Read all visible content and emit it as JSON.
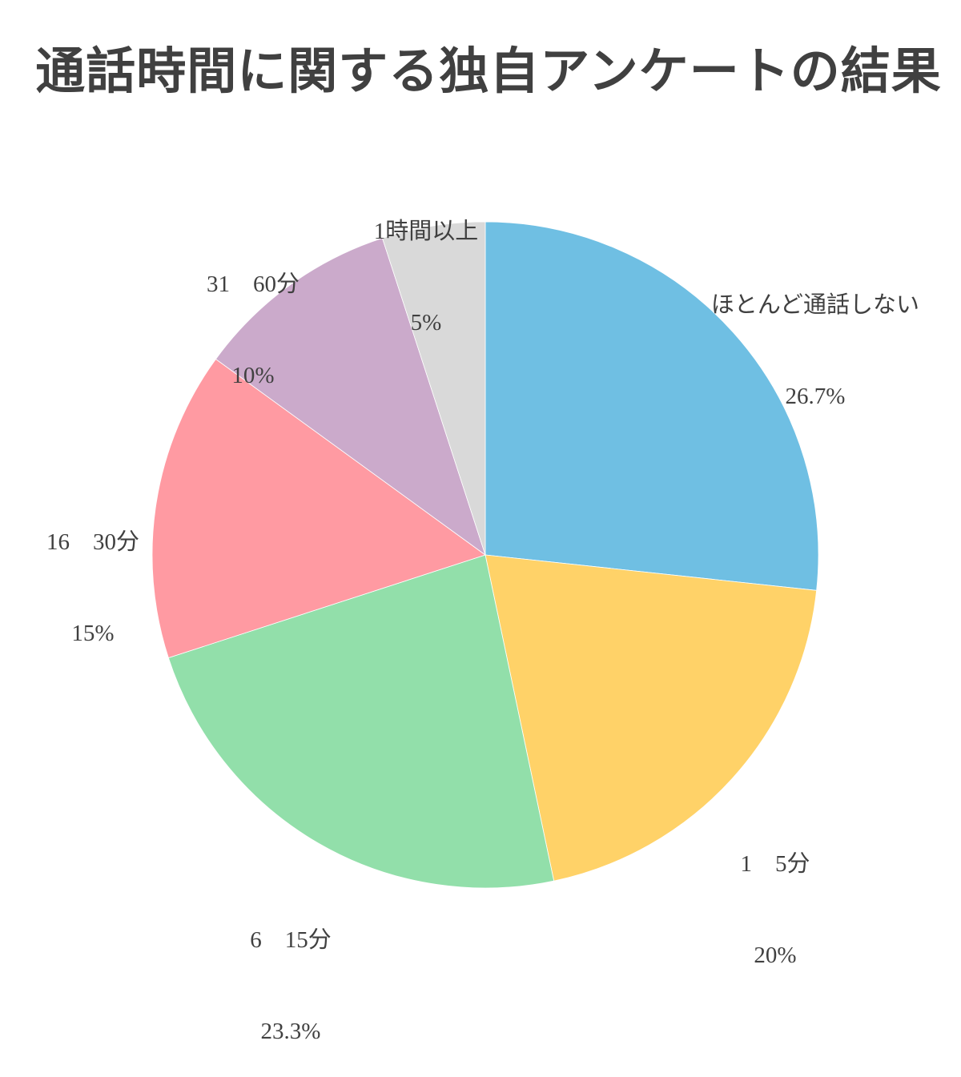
{
  "title": "通話時間に関する独自アンケートの結果",
  "chart_data": {
    "type": "pie",
    "title": "通話時間に関する独自アンケートの結果",
    "categories": [
      "ほとんど通話しない",
      "1　5分",
      "6　15分",
      "16　30分",
      "31　60分",
      "1時間以上"
    ],
    "values": [
      26.7,
      20,
      23.3,
      15,
      10,
      5
    ],
    "value_labels": [
      "26.7%",
      "20%",
      "23.3%",
      "15%",
      "10%",
      "5%"
    ],
    "colors": [
      "#6FBFE3",
      "#FFD268",
      "#92DFAA",
      "#FF9AA2",
      "#CBAACB",
      "#D9D9D9"
    ],
    "start_angle": "12 o'clock",
    "direction": "clockwise",
    "legend": "none (labels outside slices)"
  },
  "labels": [
    {
      "name": "ほとんど通話しない",
      "pct": "26.7%"
    },
    {
      "name": "1　5分",
      "pct": "20%"
    },
    {
      "name": "6　15分",
      "pct": "23.3%"
    },
    {
      "name": "16　30分",
      "pct": "15%"
    },
    {
      "name": "31　60分",
      "pct": "10%"
    },
    {
      "name": "1時間以上",
      "pct": "5%"
    }
  ]
}
